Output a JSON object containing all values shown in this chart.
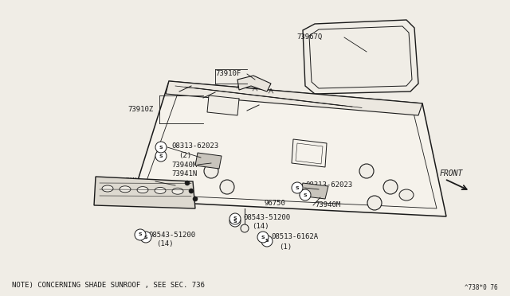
{
  "bg_color": "#f0ede6",
  "line_color": "#1a1a1a",
  "note_text": "NOTE) CONCERNING SHADE SUNROOF , SEE SEC. 736",
  "watermark": "^738*0 76",
  "front_label": "FRONT"
}
